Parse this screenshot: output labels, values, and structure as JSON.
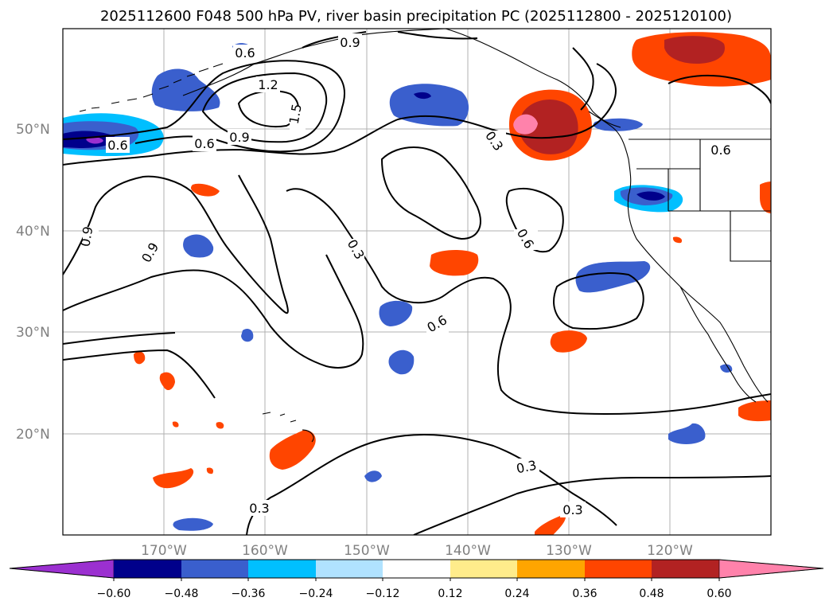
{
  "title": "2025112600 F048 500 hPa PV, river basin precipitation PC (2025112800 - 2025120100)",
  "map": {
    "lat_labels": [
      "50°N",
      "40°N",
      "30°N",
      "20°N"
    ],
    "lon_labels": [
      "170°W",
      "160°W",
      "150°W",
      "140°W",
      "130°W",
      "120°W"
    ],
    "contour_labels": [
      "0.9",
      "0.6",
      "1.2",
      "1.5",
      "0.6",
      "0.9",
      "0.6",
      "0.3",
      "0.6",
      "0.6",
      "0.9",
      "0.9",
      "0.3",
      "0.6",
      "0.3",
      "0.3",
      "0.3"
    ]
  },
  "colorbar": {
    "ticks": [
      "−0.60",
      "−0.48",
      "−0.36",
      "−0.24",
      "−0.12",
      "0.12",
      "0.24",
      "0.36",
      "0.48",
      "0.60"
    ],
    "colors": [
      "#9b30d0",
      "#00008b",
      "#3a5fcd",
      "#00bfff",
      "#b0e2ff",
      "#ffffff",
      "#ffec8b",
      "#ffa500",
      "#ff4500",
      "#b22222",
      "#ff82ab"
    ]
  },
  "colors": {
    "axis": "#000000",
    "grid": "#b0b0b0",
    "label_gray": "#808080"
  }
}
